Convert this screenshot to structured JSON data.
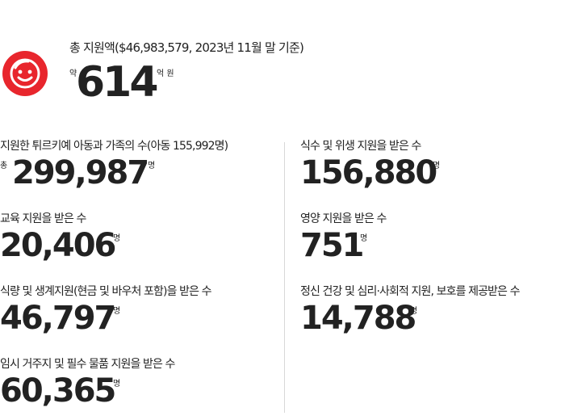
{
  "summary": {
    "label": "총 지원액($46,983,579, 2023년 11월 말 기준)",
    "prefix": "약",
    "value": "614",
    "unit": "억 원",
    "logo_icon": "smiley-face-logo-icon",
    "accent_color": "#e8262d"
  },
  "stats": [
    {
      "label": "지원한 튀르키예 아동과 가족의 수(아동 155,992명)",
      "prefix": "총",
      "value": "299,987",
      "unit": "명"
    },
    {
      "label": "교육 지원을 받은 수",
      "value": "20,406",
      "unit": "명"
    },
    {
      "label": "식량 및 생계지원(현금 및 바우처 포함)을 받은 수",
      "value": "46,797",
      "unit": "명"
    },
    {
      "label": "임시 거주지 및 필수 물품 지원을 받은 수",
      "value": "60,365",
      "unit": "명"
    },
    {
      "label": "식수 및 위생 지원을 받은 수",
      "value": "156,880",
      "unit": "명"
    },
    {
      "label": "영양 지원을 받은 수",
      "value": "751",
      "unit": "명"
    },
    {
      "label": "정신 건강 및 심리·사회적 지원, 보호를 제공받은 수",
      "value": "14,788",
      "unit": "명"
    }
  ]
}
